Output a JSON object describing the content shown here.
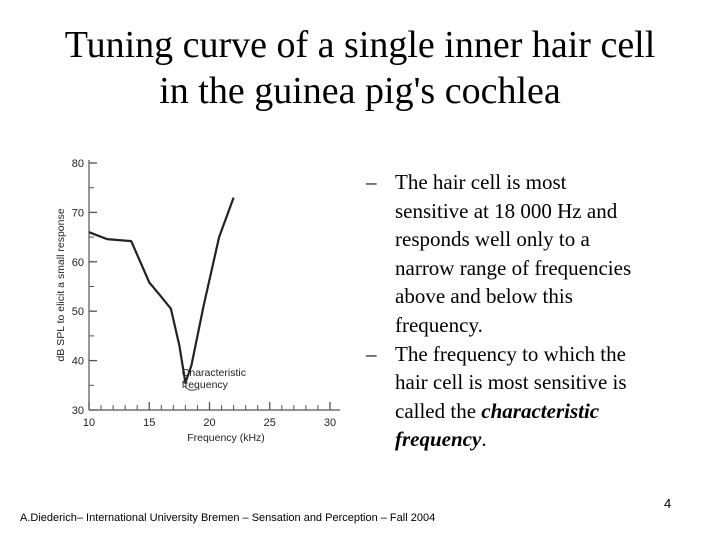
{
  "slide": {
    "title_line1": "Tuning curve of a single inner hair cell",
    "title_line2": "in the guinea pig's cochlea",
    "bullets": [
      {
        "dash": "–",
        "lines": [
          "The hair cell is most",
          "sensitive at 18 000 Hz and",
          "responds well only to a",
          "narrow range of frequencies",
          "above and below this",
          "frequency."
        ]
      },
      {
        "dash": "–",
        "lines": [
          "The frequency to which the",
          "hair cell is most sensitive is",
          "called the "
        ],
        "emph_line1": "characteristic",
        "emph_line2": "frequency",
        "tail": "."
      }
    ],
    "footer": "A.Diederich– International University Bremen – Sensation and Perception – Fall 2004",
    "page_number": "4"
  },
  "chart_data": {
    "type": "line",
    "xlabel": "Frequency (kHz)",
    "ylabel": "dB SPL to elicit a small response",
    "x_tick_labels": [
      "10",
      "15",
      "20",
      "25",
      "30"
    ],
    "y_tick_labels": [
      "30",
      "40",
      "50",
      "60",
      "70",
      "80"
    ],
    "xlim": [
      10,
      30
    ],
    "ylim": [
      30,
      80
    ],
    "x_minor_step": 1,
    "y_minor_step": 5,
    "series": [
      {
        "x": [
          10,
          11.5,
          13.5,
          15,
          15.8,
          16.8,
          17.5,
          18,
          18.5,
          19.5,
          20.8,
          22
        ],
        "y": [
          66,
          64.6,
          64.2,
          55.8,
          53.5,
          50.5,
          43,
          35.5,
          39,
          51,
          65,
          73
        ]
      }
    ],
    "annotation": {
      "line1": "Characteristic",
      "line2": "frequency",
      "x": 18.2,
      "y": 34
    },
    "line_color": "#222222"
  }
}
